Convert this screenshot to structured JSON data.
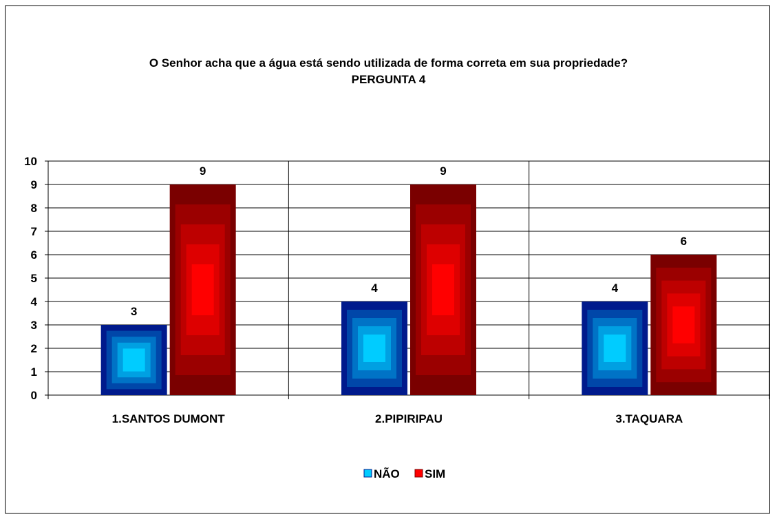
{
  "chart_data": {
    "type": "bar",
    "title": "O Senhor acha que a água está sendo utilizada de forma correta em sua propriedade?",
    "subtitle": "PERGUNTA 4",
    "categories": [
      "1.SANTOS DUMONT",
      "2.PIPIRIPAU",
      "3.TAQUARA"
    ],
    "series": [
      {
        "name": "NÃO",
        "values": [
          3,
          4,
          4
        ],
        "color": "#00ccff",
        "edge_color": "#001a8c"
      },
      {
        "name": "SIM",
        "values": [
          9,
          9,
          6
        ],
        "color": "#ff0000",
        "edge_color": "#7a0000"
      }
    ],
    "ylim": [
      0,
      10
    ],
    "yticks": [
      "0",
      "1",
      "2",
      "3",
      "4",
      "5",
      "6",
      "7",
      "8",
      "9",
      "10"
    ],
    "grid": true,
    "legend_position": "bottom",
    "data_labels": true
  }
}
